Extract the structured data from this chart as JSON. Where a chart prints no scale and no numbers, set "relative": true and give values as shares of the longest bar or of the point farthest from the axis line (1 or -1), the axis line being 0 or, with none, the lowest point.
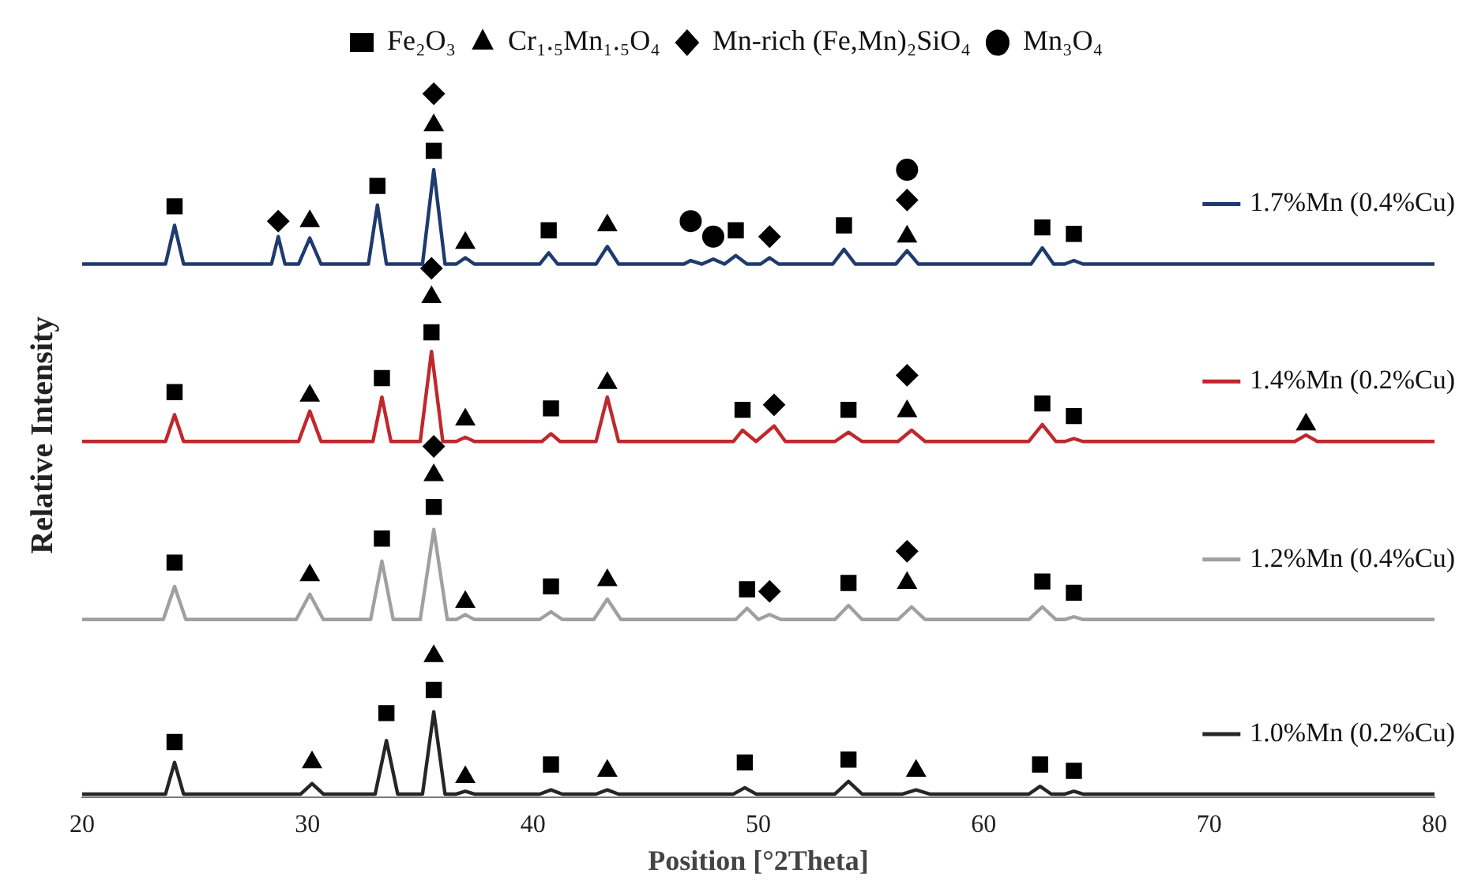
{
  "chart_data": {
    "type": "line",
    "xlabel": "Position [°2Theta]",
    "ylabel": "Relative Intensity",
    "relative": true,
    "xlim": [
      20,
      80
    ],
    "xticks": [
      20,
      30,
      40,
      50,
      60,
      70,
      80
    ],
    "grid": false,
    "legend": "top",
    "line_style": "solid",
    "marker": "none",
    "series": [
      {
        "type": "line",
        "name": "1.0%Mn (0.2%Cu)",
        "color": "#262626",
        "x": [
          20,
          23.7,
          24.1,
          24.5,
          29.7,
          30.2,
          30.7,
          33,
          33.5,
          34,
          35.1,
          35.6,
          36.1,
          36.6,
          37,
          37.4,
          40.3,
          40.8,
          41.3,
          42.8,
          43.3,
          43.8,
          48.9,
          49.4,
          49.9,
          53.4,
          54,
          54.6,
          56.4,
          57,
          57.6,
          62,
          62.5,
          63,
          63.6,
          64,
          64.4,
          80
        ],
        "values": [
          0.005,
          0.005,
          0.05,
          0.005,
          0.005,
          0.02,
          0.005,
          0.005,
          0.081,
          0.005,
          0.005,
          0.122,
          0.005,
          0.005,
          0.009,
          0.005,
          0.005,
          0.011,
          0.005,
          0.005,
          0.011,
          0.005,
          0.005,
          0.014,
          0.005,
          0.005,
          0.023,
          0.005,
          0.005,
          0.011,
          0.005,
          0.005,
          0.016,
          0.005,
          0.005,
          0.009,
          0.005,
          0.005
        ]
      },
      {
        "type": "line",
        "name": "1.2%Mn (0.4%Cu)",
        "color": "#a0a0a0",
        "x": [
          20,
          23.6,
          24.1,
          24.6,
          29.5,
          30.1,
          30.7,
          32.8,
          33.3,
          33.8,
          35,
          35.6,
          36.2,
          36.6,
          37,
          37.4,
          40.3,
          40.8,
          41.3,
          42.7,
          43.3,
          43.9,
          49,
          49.5,
          50,
          50.5,
          51,
          53.4,
          54,
          54.6,
          56.2,
          56.8,
          57.4,
          62,
          62.6,
          63.2,
          63.6,
          64,
          64.4,
          80
        ],
        "values": [
          0.253,
          0.253,
          0.3,
          0.253,
          0.253,
          0.289,
          0.253,
          0.253,
          0.336,
          0.253,
          0.253,
          0.381,
          0.253,
          0.253,
          0.26,
          0.253,
          0.253,
          0.264,
          0.253,
          0.253,
          0.282,
          0.253,
          0.253,
          0.269,
          0.253,
          0.26,
          0.253,
          0.253,
          0.273,
          0.253,
          0.253,
          0.271,
          0.253,
          0.253,
          0.271,
          0.253,
          0.253,
          0.257,
          0.253,
          0.253
        ]
      },
      {
        "type": "line",
        "name": "1.4%Mn (0.2%Cu)",
        "color": "#c0282d",
        "x": [
          20,
          23.7,
          24.1,
          24.5,
          29.6,
          30.1,
          30.6,
          32.9,
          33.3,
          33.7,
          35,
          35.5,
          36,
          36.6,
          37,
          37.4,
          40.4,
          40.8,
          41.2,
          42.8,
          43.3,
          43.8,
          48.9,
          49.3,
          49.9,
          50.7,
          51.2,
          53.4,
          54,
          54.6,
          56.2,
          56.8,
          57.4,
          62,
          62.6,
          63.2,
          63.6,
          64,
          64.4,
          73.8,
          74.3,
          74.8,
          80
        ],
        "values": [
          0.506,
          0.506,
          0.544,
          0.506,
          0.506,
          0.549,
          0.506,
          0.506,
          0.569,
          0.506,
          0.506,
          0.634,
          0.506,
          0.506,
          0.512,
          0.506,
          0.506,
          0.517,
          0.506,
          0.506,
          0.569,
          0.506,
          0.506,
          0.522,
          0.506,
          0.528,
          0.506,
          0.506,
          0.519,
          0.506,
          0.506,
          0.522,
          0.506,
          0.506,
          0.53,
          0.506,
          0.506,
          0.51,
          0.506,
          0.506,
          0.515,
          0.506,
          0.506
        ]
      },
      {
        "type": "line",
        "name": "1.7%Mn (0.4%Cu)",
        "color": "#1f3a6e",
        "x": [
          20,
          23.7,
          24.1,
          24.5,
          28.4,
          28.7,
          29,
          29.6,
          30.1,
          30.6,
          32.7,
          33.1,
          33.5,
          35.1,
          35.6,
          36.1,
          36.6,
          37,
          37.4,
          40.3,
          40.7,
          41.1,
          42.8,
          43.3,
          43.8,
          46.7,
          47,
          47.5,
          48,
          48.5,
          49,
          49.5,
          50.1,
          50.5,
          50.9,
          53.3,
          53.8,
          54.3,
          56.1,
          56.6,
          57.1,
          62.1,
          62.6,
          63.1,
          63.6,
          64,
          64.4,
          80
        ],
        "values": [
          0.758,
          0.758,
          0.813,
          0.758,
          0.758,
          0.797,
          0.758,
          0.758,
          0.795,
          0.758,
          0.758,
          0.842,
          0.758,
          0.758,
          0.892,
          0.758,
          0.758,
          0.767,
          0.758,
          0.758,
          0.774,
          0.758,
          0.758,
          0.783,
          0.758,
          0.758,
          0.763,
          0.758,
          0.765,
          0.758,
          0.77,
          0.758,
          0.758,
          0.767,
          0.758,
          0.758,
          0.779,
          0.758,
          0.758,
          0.777,
          0.758,
          0.758,
          0.781,
          0.758,
          0.758,
          0.763,
          0.758,
          0.758
        ]
      },
      {
        "type": "scatter",
        "name": "Fe₂O₃",
        "color": "#000000",
        "marker": "square",
        "x": [
          24.1,
          33.1,
          35.6,
          40.7,
          49,
          53.8,
          62.6,
          64,
          24.1,
          33.3,
          35.5,
          40.8,
          49.3,
          54,
          62.6,
          64,
          24.1,
          33.3,
          35.6,
          40.8,
          49.5,
          54,
          62.6,
          64,
          24.1,
          33.5,
          35.6,
          40.8,
          49.4,
          54,
          62.5,
          64
        ],
        "values": [
          0.84,
          0.869,
          0.919,
          0.806,
          0.806,
          0.813,
          0.81,
          0.801,
          0.576,
          0.596,
          0.661,
          0.553,
          0.551,
          0.551,
          0.56,
          0.542,
          0.334,
          0.368,
          0.413,
          0.3,
          0.296,
          0.305,
          0.307,
          0.291,
          0.079,
          0.12,
          0.153,
          0.047,
          0.05,
          0.054,
          0.047,
          0.038
        ]
      },
      {
        "type": "scatter",
        "name": "Cr₁.₅Mn₁.₅O₄",
        "color": "#000000",
        "marker": "triangle",
        "x": [
          30.1,
          35.6,
          37,
          43.3,
          56.6,
          30.1,
          35.5,
          37,
          43.3,
          56.6,
          74.3,
          30.1,
          35.6,
          37,
          43.3,
          56.6,
          30.2,
          35.6,
          37,
          43.3,
          57
        ],
        "values": [
          0.819,
          0.955,
          0.788,
          0.813,
          0.797,
          0.571,
          0.711,
          0.537,
          0.589,
          0.549,
          0.53,
          0.316,
          0.458,
          0.278,
          0.309,
          0.305,
          0.05,
          0.201,
          0.029,
          0.038,
          0.038
        ]
      },
      {
        "type": "scatter",
        "name": "Mn-rich (Fe,Mn)₂SiO₄",
        "color": "#000000",
        "marker": "diamond",
        "x": [
          28.7,
          35.6,
          50.5,
          56.6,
          35.5,
          50.7,
          56.6,
          35.6,
          50.5,
          56.6
        ],
        "values": [
          0.819,
          1,
          0.797,
          0.849,
          0.752,
          0.558,
          0.6,
          0.499,
          0.293,
          0.35
        ]
      },
      {
        "type": "scatter",
        "name": "Mn₃O₄",
        "color": "#000000",
        "marker": "circle",
        "x": [
          47,
          48,
          56.6
        ],
        "values": [
          0.819,
          0.797,
          0.892
        ]
      }
    ]
  }
}
